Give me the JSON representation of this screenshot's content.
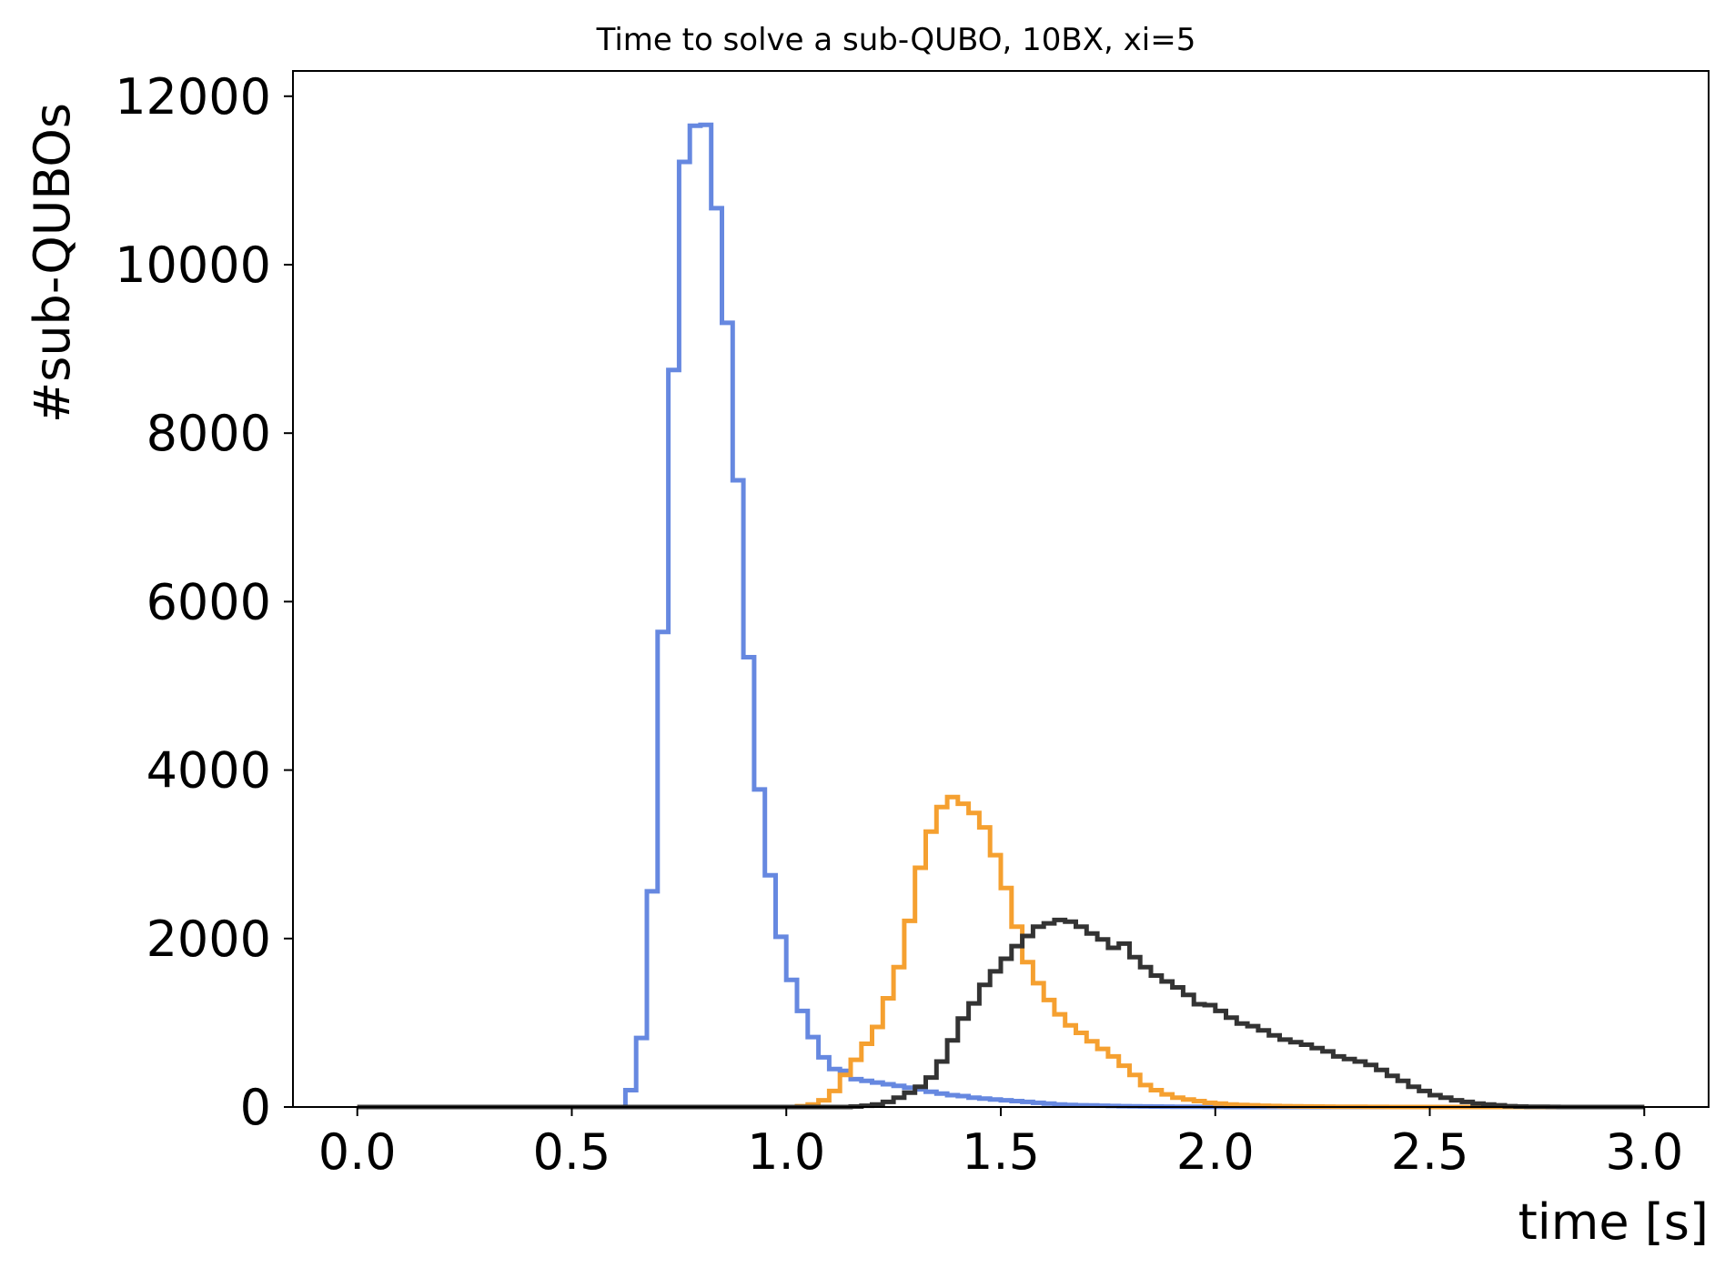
{
  "chart_data": {
    "type": "histogram-step",
    "title": "Time to solve a sub-QUBO, 10BX, xi=5",
    "xlabel": "time [s]",
    "ylabel": "#sub-QUBOs",
    "xlim": [
      -0.15,
      3.15
    ],
    "ylim": [
      0,
      12300
    ],
    "xticks": [
      0.0,
      0.5,
      1.0,
      1.5,
      2.0,
      2.5,
      3.0
    ],
    "xtick_labels": [
      "0.0",
      "0.5",
      "1.0",
      "1.5",
      "2.0",
      "2.5",
      "3.0"
    ],
    "yticks": [
      0,
      2000,
      4000,
      6000,
      8000,
      10000,
      12000
    ],
    "ytick_labels": [
      "0",
      "2000",
      "4000",
      "6000",
      "8000",
      "10000",
      "12000"
    ],
    "grid": false,
    "bins": {
      "start": 0.0,
      "end": 3.0,
      "count": 120,
      "width": 0.025
    },
    "series": [
      {
        "color": "#6688e0",
        "values": [
          0,
          0,
          0,
          0,
          0,
          0,
          0,
          0,
          0,
          0,
          0,
          0,
          0,
          0,
          0,
          0,
          0,
          0,
          0,
          0,
          0,
          0,
          0,
          0,
          0,
          200,
          820,
          2560,
          5640,
          8750,
          11220,
          11650,
          11660,
          10670,
          9310,
          7440,
          5340,
          3770,
          2750,
          2020,
          1510,
          1140,
          830,
          590,
          450,
          430,
          330,
          310,
          290,
          270,
          250,
          230,
          210,
          180,
          160,
          140,
          130,
          110,
          100,
          90,
          80,
          70,
          60,
          50,
          40,
          30,
          25,
          20,
          18,
          15,
          12,
          10,
          8,
          6,
          5,
          4,
          3,
          2,
          2,
          1,
          1,
          0,
          0,
          0,
          0,
          0,
          0,
          0,
          0,
          0,
          0,
          0,
          0,
          0,
          0,
          0,
          0,
          0,
          0,
          0,
          0,
          0,
          0,
          0,
          0,
          0,
          0,
          0,
          0,
          0,
          0,
          0,
          0,
          0,
          0,
          0,
          0,
          0,
          0,
          0
        ]
      },
      {
        "color": "#f5a030",
        "values": [
          0,
          0,
          0,
          0,
          0,
          0,
          0,
          0,
          0,
          0,
          0,
          0,
          0,
          0,
          0,
          0,
          0,
          0,
          0,
          0,
          0,
          0,
          0,
          0,
          0,
          0,
          0,
          0,
          0,
          0,
          0,
          0,
          0,
          0,
          0,
          0,
          0,
          0,
          0,
          0,
          0,
          10,
          30,
          80,
          190,
          380,
          560,
          750,
          950,
          1290,
          1660,
          2210,
          2840,
          3270,
          3560,
          3680,
          3600,
          3490,
          3320,
          2990,
          2600,
          2140,
          1720,
          1470,
          1270,
          1100,
          970,
          880,
          780,
          690,
          600,
          490,
          380,
          260,
          200,
          150,
          110,
          90,
          70,
          50,
          40,
          30,
          25,
          20,
          15,
          12,
          10,
          8,
          6,
          5,
          4,
          3,
          2,
          2,
          1,
          1,
          0,
          0,
          0,
          0,
          0,
          0,
          0,
          0,
          0,
          0,
          0,
          0,
          0,
          0,
          0,
          0,
          0,
          0,
          0,
          0,
          0,
          0,
          0,
          0
        ]
      },
      {
        "color": "#333333",
        "values": [
          0,
          0,
          0,
          0,
          0,
          0,
          0,
          0,
          0,
          0,
          0,
          0,
          0,
          0,
          0,
          0,
          0,
          0,
          0,
          0,
          0,
          0,
          0,
          0,
          0,
          0,
          0,
          0,
          0,
          0,
          0,
          0,
          0,
          0,
          0,
          0,
          0,
          0,
          0,
          0,
          0,
          0,
          0,
          0,
          0,
          0,
          5,
          15,
          30,
          60,
          110,
          170,
          240,
          350,
          540,
          790,
          1050,
          1230,
          1450,
          1610,
          1760,
          1910,
          2030,
          2140,
          2180,
          2220,
          2200,
          2140,
          2060,
          1990,
          1890,
          1940,
          1780,
          1660,
          1560,
          1490,
          1420,
          1330,
          1220,
          1210,
          1140,
          1060,
          990,
          960,
          910,
          850,
          800,
          770,
          740,
          700,
          660,
          600,
          570,
          540,
          500,
          440,
          370,
          310,
          240,
          190,
          140,
          110,
          80,
          60,
          40,
          30,
          20,
          10,
          5,
          3,
          2,
          1,
          0,
          0,
          0,
          0,
          0,
          0,
          0,
          0
        ]
      }
    ]
  }
}
